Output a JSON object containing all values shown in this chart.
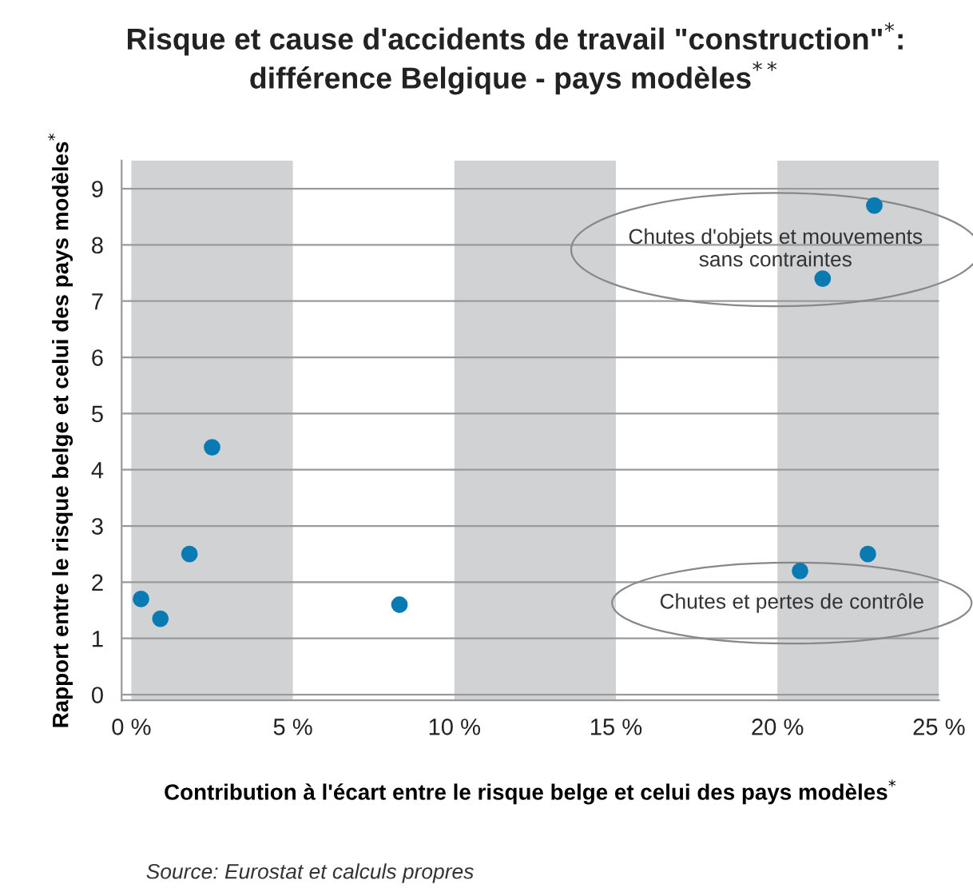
{
  "chart_data": {
    "type": "scatter",
    "title": "Risque et cause d'accidents de travail \"construction\"$^{*}$:\ndifférence Belgique - pays modèles$^{**}$",
    "xlabel": "Contribution à l'écart entre le risque belge et celui des pays modèles$^{*}$",
    "ylabel": "Rapport entre le risque belge et celui des pays modèles$^{*}$",
    "x": [
      0.3,
      0.9,
      1.8,
      2.5,
      8.3,
      20.7,
      22.8,
      21.4,
      23.0
    ],
    "series": [
      {
        "color": "#0a7ab3",
        "values": [
          1.7,
          1.35,
          2.5,
          4.4,
          1.6,
          2.2,
          2.5,
          7.4,
          8.7
        ]
      }
    ],
    "marker": "circle",
    "xlim": [
      -0.3,
      25
    ],
    "ylim": [
      -0.1,
      9.5
    ],
    "xticks": [
      {
        "value": 0,
        "label": "0 %"
      },
      {
        "value": 5,
        "label": "5 %"
      },
      {
        "value": 10,
        "label": "10 %"
      },
      {
        "value": 15,
        "label": "15 %"
      },
      {
        "value": 20,
        "label": "20 %"
      },
      {
        "value": 25,
        "label": "25 %"
      }
    ],
    "yticks": [
      0,
      1,
      2,
      3,
      4,
      5,
      6,
      7,
      8,
      9
    ],
    "grid": "y",
    "bands": [
      {
        "axis": "x",
        "from": 0,
        "to": 5,
        "color": "#d1d2d4"
      },
      {
        "axis": "x",
        "from": 10,
        "to": 15,
        "color": "#d1d2d4"
      },
      {
        "axis": "x",
        "from": 20,
        "to": 25,
        "color": "#d1d2d4"
      }
    ],
    "annotations": [
      "Chutes d'objets et mouvements\nsans contraintes",
      "Chutes et pertes de contrôle",
      "Source: Eurostat et calculs propres"
    ]
  }
}
